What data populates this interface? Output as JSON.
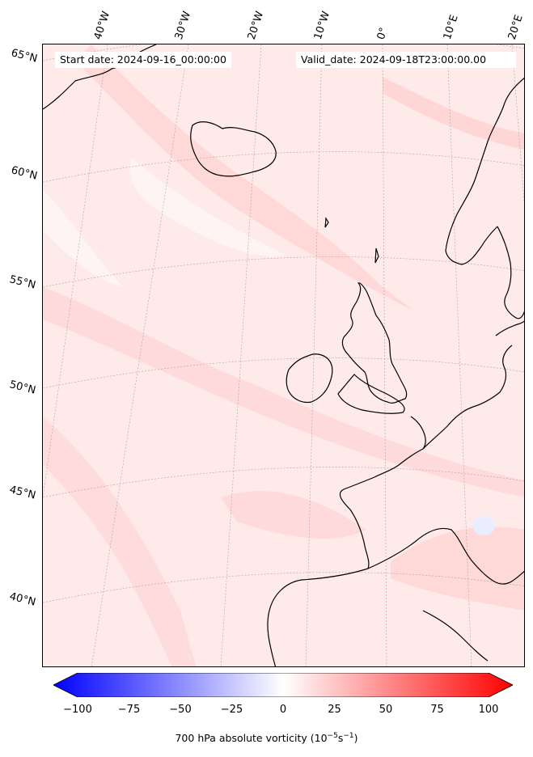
{
  "header": {
    "start_date": "Start date: 2024-09-16_00:00:00",
    "valid_date": "Valid_date: 2024-09-18T23:00:00.00"
  },
  "latitude_labels": [
    "65°N",
    "60°N",
    "55°N",
    "50°N",
    "45°N",
    "40°N"
  ],
  "longitude_labels": [
    "40°W",
    "30°W",
    "20°W",
    "10°W",
    "0°",
    "10°E",
    "20°E"
  ],
  "colorbar": {
    "min": -100,
    "max": 100,
    "tick_labels": [
      "−100",
      "−75",
      "−50",
      "−25",
      "0",
      "25",
      "50",
      "75",
      "100"
    ],
    "label": "700 hPa absolute vorticity (10",
    "label_exp1": "−5",
    "label_mid": "s",
    "label_exp2": "−1",
    "label_end": ")",
    "colors": {
      "low": "#0000ff",
      "mid": "#ffffff",
      "high": "#ff0000"
    }
  },
  "colors": {
    "background_field": "#ffeaea",
    "band_light": "#fff4f4",
    "band_medium": "#ffd6d6",
    "coastline": "#000000",
    "gridline": "#b0a0a0"
  }
}
